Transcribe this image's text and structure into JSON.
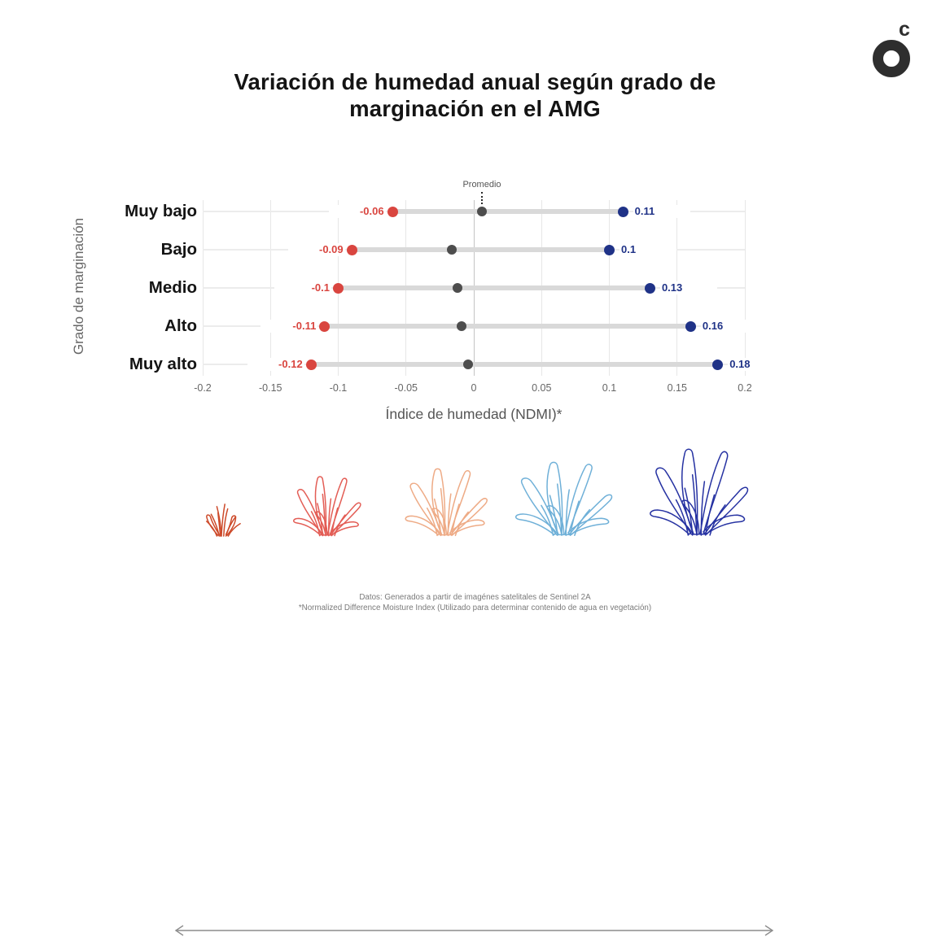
{
  "title": {
    "text": "Variación de humedad anual según grado de\nmarginación en el AMG"
  },
  "logo": {
    "glyph": "c",
    "color": "#2e2e2e"
  },
  "chart_data": {
    "type": "dumbbell",
    "title": "Variación de humedad anual según grado de marginación en el AMG",
    "ylabel": "Grado de marginación",
    "xlabel": "Índice de humedad (NDMI)*",
    "xlim": [
      -0.2,
      0.2
    ],
    "xticks": [
      -0.2,
      -0.15,
      -0.1,
      -0.05,
      0,
      0.05,
      0.1,
      0.15,
      0.2
    ],
    "xtick_labels": [
      "-0.2",
      "-0.15",
      "-0.1",
      "-0.05",
      "0",
      "0.05",
      "0.1",
      "0.15",
      "0.2"
    ],
    "grid": true,
    "categories": [
      "Muy bajo",
      "Bajo",
      "Medio",
      "Alto",
      "Muy alto"
    ],
    "series": [
      {
        "key": "red_min",
        "color": "#d9453f",
        "values": [
          -0.06,
          -0.09,
          -0.1,
          -0.11,
          -0.12
        ],
        "labels": [
          "-0.06",
          "-0.09",
          "-0.1",
          "-0.11",
          "-0.12"
        ]
      },
      {
        "key": "gray_promedio",
        "name": "Promedio",
        "color": "#4d4d4d",
        "values": [
          0.006,
          -0.016,
          -0.012,
          -0.009,
          -0.004
        ]
      },
      {
        "key": "blue_max",
        "color": "#1f3287",
        "values": [
          0.11,
          0.1,
          0.13,
          0.16,
          0.18
        ],
        "labels": [
          "0.11",
          "0.1",
          "0.13",
          "0.16",
          "0.18"
        ]
      }
    ],
    "annotation": {
      "label": "Promedio",
      "attached_to": "Muy bajo"
    },
    "bar_color": "#d9d9d9",
    "grid_color": "#e7e7e7",
    "zero_grid_color": "#c4c4c4"
  },
  "plants": {
    "arrow_color": "#8c8c8c",
    "items": [
      {
        "color": "#cd4a2a"
      },
      {
        "color": "#e35d55"
      },
      {
        "color": "#eeab86"
      },
      {
        "color": "#6fb0d8"
      },
      {
        "color": "#2632a2"
      }
    ]
  },
  "footer": {
    "line1": "Datos: Generados a partir de imagénes satelitales de Sentinel 2A",
    "line2": "*Normalized Difference Moisture Index (Utilizado para determinar contenido de agua en vegetación)"
  }
}
